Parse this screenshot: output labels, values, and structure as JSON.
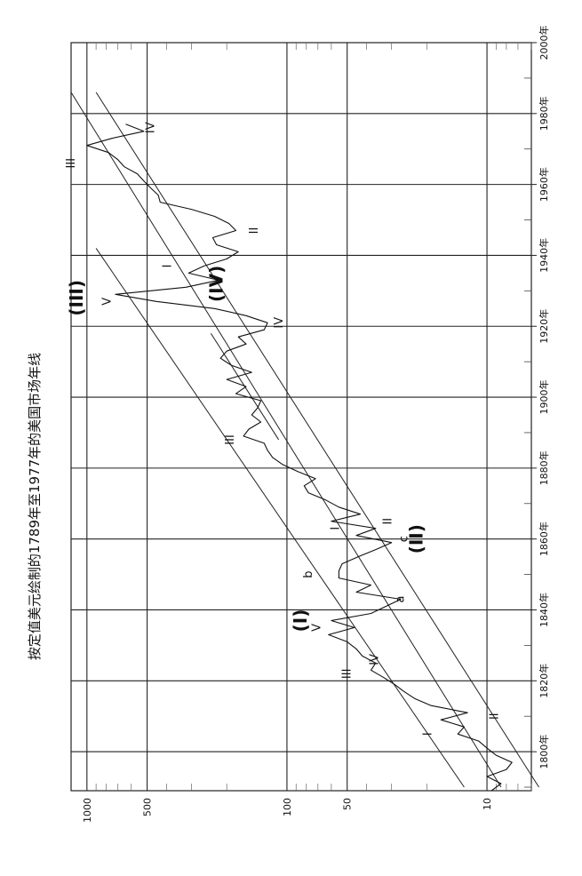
{
  "chart_data": {
    "type": "line",
    "title": "按定值美元绘制的1789年至1977年的美国市场年线",
    "xlabel": "",
    "ylabel": "",
    "x_scale": "linear",
    "y_scale": "log",
    "xlim": [
      1789,
      2000
    ],
    "ylim": [
      6,
      1200
    ],
    "x_ticks": [
      1800,
      1820,
      1840,
      1860,
      1880,
      1900,
      1920,
      1940,
      1960,
      1980,
      2000
    ],
    "x_tick_labels": [
      "1800年",
      "1820年",
      "1840年",
      "1860年",
      "1880年",
      "1900年",
      "1920年",
      "1940年",
      "1960年",
      "1980年",
      "2000年"
    ],
    "y_ticks": [
      10,
      50,
      100,
      500,
      1000
    ],
    "y_tick_labels": [
      "10",
      "50",
      "100",
      "500",
      "1000"
    ],
    "grid": true,
    "series": [
      {
        "x": [
          1789,
          1791,
          1793,
          1795,
          1797,
          1799,
          1801,
          1803,
          1805,
          1807,
          1809,
          1811,
          1813,
          1815,
          1817,
          1819,
          1821,
          1823,
          1825,
          1827,
          1829,
          1831,
          1833,
          1835,
          1837,
          1839,
          1841,
          1843,
          1845,
          1847,
          1849,
          1851,
          1853,
          1855,
          1857,
          1859,
          1861,
          1863,
          1865,
          1867,
          1869,
          1871,
          1873,
          1875,
          1877,
          1879,
          1881,
          1883,
          1885,
          1887,
          1889,
          1891,
          1893,
          1895,
          1897,
          1899,
          1901,
          1903,
          1905,
          1907,
          1909,
          1911,
          1913,
          1915,
          1917,
          1919,
          1921,
          1923,
          1925,
          1927,
          1929,
          1931,
          1933,
          1935,
          1937,
          1939,
          1941,
          1943,
          1945,
          1947,
          1949,
          1951,
          1953,
          1955,
          1957,
          1959,
          1961,
          1963,
          1965,
          1967,
          1969,
          1971,
          1973,
          1975,
          1977
        ],
        "y": [
          9.5,
          8.5,
          10,
          8,
          7.5,
          9,
          10,
          11,
          14,
          13,
          17,
          12.5,
          19,
          23,
          26,
          29,
          33,
          38,
          36,
          42,
          45,
          50,
          62,
          46,
          60,
          38,
          32,
          27,
          45,
          38,
          55,
          55,
          53,
          44,
          36,
          30,
          45,
          36,
          60,
          43,
          55,
          64,
          78,
          82,
          72,
          88,
          105,
          118,
          125,
          130,
          165,
          155,
          135,
          150,
          140,
          135,
          180,
          160,
          200,
          150,
          190,
          215,
          200,
          160,
          175,
          130,
          125,
          160,
          230,
          450,
          720,
          320,
          220,
          310,
          260,
          200,
          175,
          225,
          235,
          180,
          195,
          230,
          300,
          430,
          440,
          480,
          520,
          560,
          650,
          700,
          780,
          1000,
          750,
          520,
          640
        ]
      }
    ],
    "wave_labels": [
      {
        "text": "(I)",
        "x": 1837,
        "y": 80
      },
      {
        "text": "V",
        "x": 1835,
        "y": 68
      },
      {
        "text": "I",
        "x": 1805,
        "y": 19
      },
      {
        "text": "II",
        "x": 1810,
        "y": 8.8
      },
      {
        "text": "III",
        "x": 1822,
        "y": 48
      },
      {
        "text": "IV",
        "x": 1826,
        "y": 35
      },
      {
        "text": "a",
        "x": 1843,
        "y": 26
      },
      {
        "text": "b",
        "x": 1850,
        "y": 75
      },
      {
        "text": "c",
        "x": 1860,
        "y": 25
      },
      {
        "text": "(II)",
        "x": 1860,
        "y": 21
      },
      {
        "text": "I",
        "x": 1863,
        "y": 55
      },
      {
        "text": "II",
        "x": 1865,
        "y": 30
      },
      {
        "text": "III",
        "x": 1888,
        "y": 185
      },
      {
        "text": "IV",
        "x": 1921,
        "y": 105
      },
      {
        "text": "(III)",
        "x": 1928,
        "y": 1050
      },
      {
        "text": "V",
        "x": 1927,
        "y": 760
      },
      {
        "text": "(IV)",
        "x": 1932,
        "y": 210
      },
      {
        "text": "I",
        "x": 1937,
        "y": 380
      },
      {
        "text": "II",
        "x": 1947,
        "y": 140
      },
      {
        "text": "III",
        "x": 1966,
        "y": 1150
      },
      {
        "text": "IV",
        "x": 1976,
        "y": 460
      }
    ]
  }
}
